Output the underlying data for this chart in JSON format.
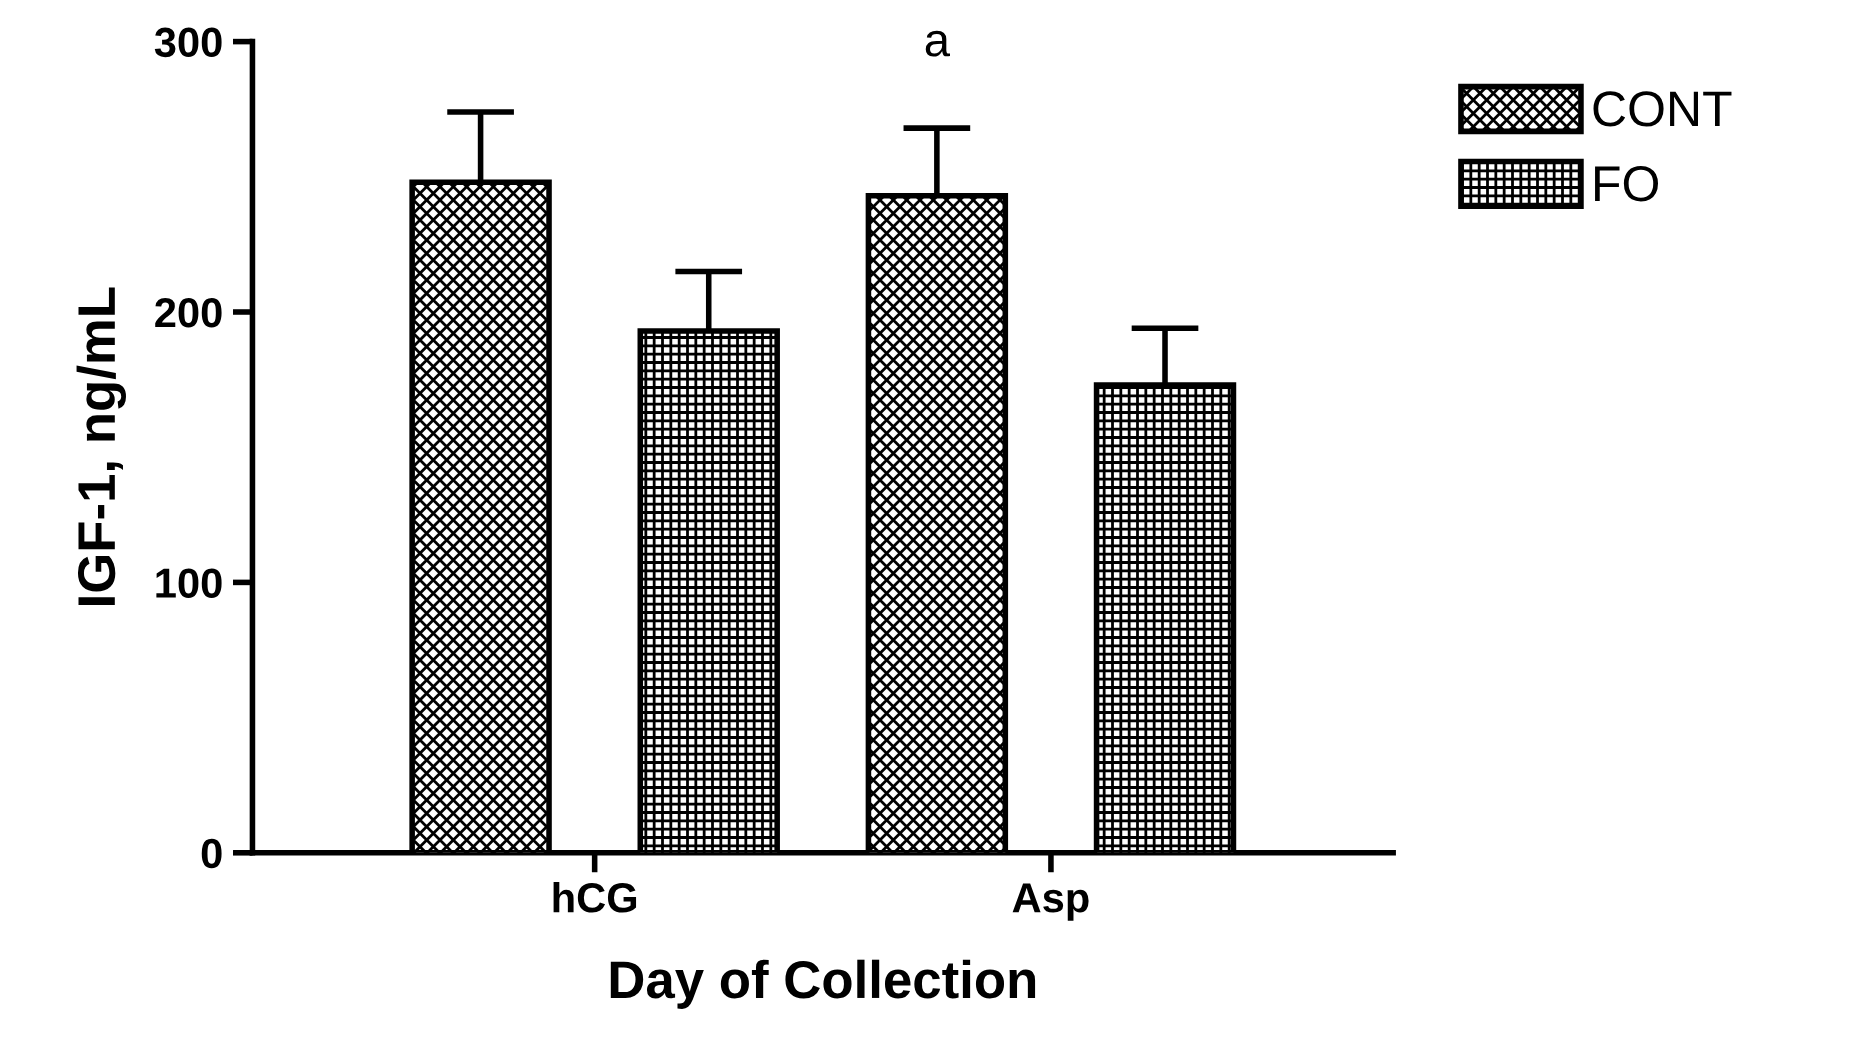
{
  "chart_data": {
    "type": "bar",
    "xlabel": "Day of Collection",
    "ylabel": "IGF-1, ng/mL",
    "categories": [
      "hCG",
      "Asp"
    ],
    "series": [
      {
        "name": "CONT",
        "color": "#000000",
        "values": [
          248,
          243
        ],
        "errors": [
          26,
          25
        ]
      },
      {
        "name": "FO",
        "color": "#000000",
        "values": [
          193,
          173
        ],
        "errors": [
          22,
          21
        ]
      }
    ],
    "annotations": [
      "a"
    ],
    "ylim": [
      0,
      300
    ],
    "yticks": [
      0,
      100,
      200,
      300
    ],
    "grid": false,
    "legend": "top right"
  }
}
